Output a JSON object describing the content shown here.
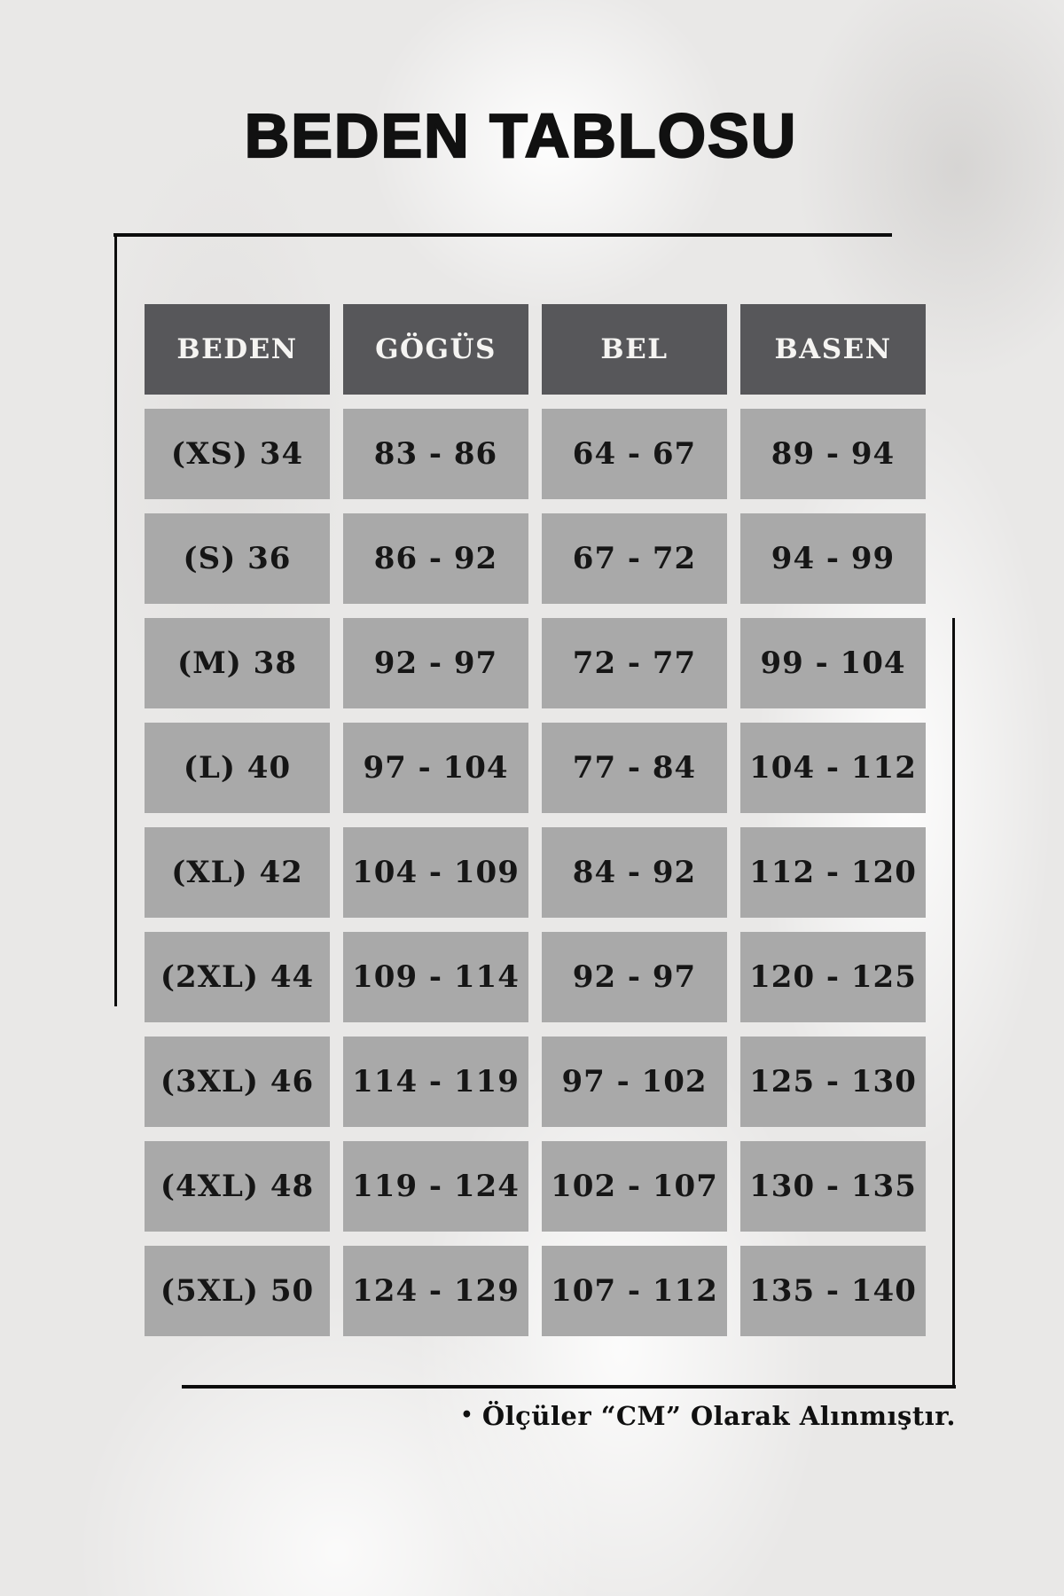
{
  "title": "BEDEN TABLOSU",
  "note": {
    "bullet": "•",
    "text": "Ölçüler “CM” Olarak Alınmıştır."
  },
  "colors": {
    "background": "#e9e8e7",
    "header_cell_bg": "#57575a",
    "header_cell_text": "#f5f4f2",
    "data_cell_bg": "#a9a9a9",
    "data_cell_text": "#161616",
    "decor_line": "#0c0c0c",
    "title_text": "#111111"
  },
  "chart_data": {
    "type": "table",
    "title": "BEDEN TABLOSU",
    "columns": [
      "BEDEN",
      "GÖGÜS",
      "BEL",
      "BASEN"
    ],
    "rows": [
      [
        "(XS) 34",
        "83 - 86",
        "64 - 67",
        "89 - 94"
      ],
      [
        "(S) 36",
        "86 - 92",
        "67 - 72",
        "94 - 99"
      ],
      [
        "(M) 38",
        "92 - 97",
        "72 - 77",
        "99 - 104"
      ],
      [
        "(L) 40",
        "97 - 104",
        "77 - 84",
        "104 - 112"
      ],
      [
        "(XL) 42",
        "104 - 109",
        "84 - 92",
        "112 - 120"
      ],
      [
        "(2XL) 44",
        "109 - 114",
        "92 - 97",
        "120 - 125"
      ],
      [
        "(3XL) 46",
        "114 - 119",
        "97 - 102",
        "125 - 130"
      ],
      [
        "(4XL) 48",
        "119 - 124",
        "102 - 107",
        "130 - 135"
      ],
      [
        "(5XL) 50",
        "124 - 129",
        "107 - 112",
        "135 - 140"
      ]
    ],
    "footnote": "Ölçüler “CM” Olarak Alınmıştır.",
    "layout_hints": {
      "header_position": "top-row",
      "grid": "separated-cells",
      "units": "cm"
    }
  }
}
